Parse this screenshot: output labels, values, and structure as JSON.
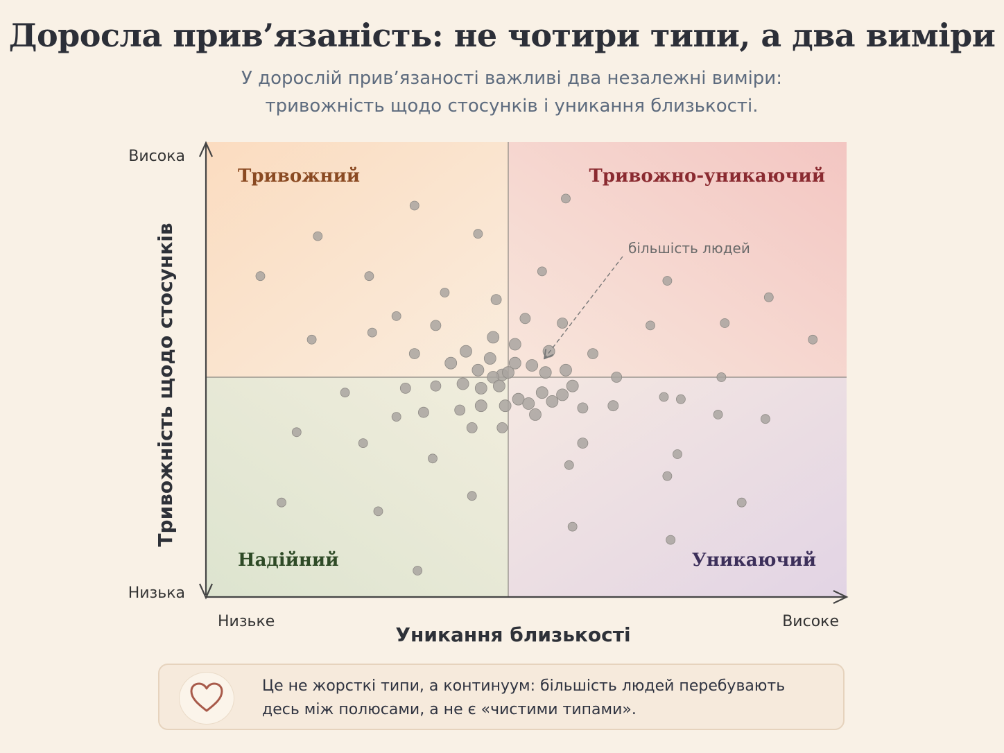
{
  "title": "Доросла прив’язаність: не чотири типи, а два виміри",
  "subtitle_line1": "У дорослій прив’язаності важливі два незалежні виміри:",
  "subtitle_line2": "тривожність щодо стосунків і уникання близькості.",
  "note": {
    "icon": "heart-icon",
    "line1": "Це не жорсткі типи, а континуум: більшість людей перебувають",
    "line2": "десь між полюсами, а не є «чистими типами»."
  },
  "colors": {
    "anxious": "#8a4a22",
    "fearful": "#8a2a30",
    "secure": "#2e4a26",
    "avoidant": "#3c2f5a",
    "points": "#a9a5a0"
  },
  "chart_data": {
    "type": "scatter",
    "xlabel": "Уникання близькості",
    "ylabel": "Тривожність щодо стосунків",
    "x_tick_labels": [
      "Низьке",
      "Високе"
    ],
    "y_tick_labels": [
      "Висока",
      "Низька"
    ],
    "xlim": [
      -1,
      1
    ],
    "ylim": [
      -1,
      1
    ],
    "quadrants": [
      {
        "id": "anxious",
        "label": "Тривожний",
        "position": "top-left"
      },
      {
        "id": "fearful",
        "label": "Тривожно-уникаючий",
        "position": "top-right"
      },
      {
        "id": "secure",
        "label": "Надійний",
        "position": "bottom-left"
      },
      {
        "id": "avoidant",
        "label": "Уникаючий",
        "position": "bottom-right"
      }
    ],
    "annotation": {
      "text": "більшість людей",
      "target": [
        0.12,
        0.05
      ]
    },
    "points": [
      [
        -0.31,
        0.73
      ],
      [
        0.17,
        0.76
      ],
      [
        -0.63,
        0.6
      ],
      [
        -0.1,
        0.61
      ],
      [
        -0.82,
        0.43
      ],
      [
        -0.46,
        0.43
      ],
      [
        0.1,
        0.45
      ],
      [
        0.47,
        0.41
      ],
      [
        0.77,
        0.34
      ],
      [
        -0.21,
        0.36
      ],
      [
        -0.04,
        0.33
      ],
      [
        -0.37,
        0.26
      ],
      [
        0.05,
        0.25
      ],
      [
        0.16,
        0.23
      ],
      [
        -0.24,
        0.22
      ],
      [
        0.42,
        0.22
      ],
      [
        0.64,
        0.23
      ],
      [
        -0.45,
        0.19
      ],
      [
        -0.65,
        0.16
      ],
      [
        0.9,
        0.16
      ],
      [
        -0.05,
        0.17
      ],
      [
        0.02,
        0.14
      ],
      [
        -0.31,
        0.1
      ],
      [
        0.12,
        0.11
      ],
      [
        0.25,
        0.1
      ],
      [
        -0.14,
        0.11
      ],
      [
        -0.19,
        0.06
      ],
      [
        -0.06,
        0.08
      ],
      [
        0.02,
        0.06
      ],
      [
        0.07,
        0.05
      ],
      [
        0.11,
        0.02
      ],
      [
        0.17,
        0.03
      ],
      [
        -0.1,
        0.03
      ],
      [
        -0.02,
        0.01
      ],
      [
        0.0,
        0.02
      ],
      [
        -0.05,
        0.0
      ],
      [
        0.63,
        0.0
      ],
      [
        0.32,
        0.0
      ],
      [
        -0.15,
        -0.03
      ],
      [
        -0.03,
        -0.04
      ],
      [
        -0.24,
        -0.04
      ],
      [
        0.19,
        -0.04
      ],
      [
        -0.09,
        -0.05
      ],
      [
        0.1,
        -0.07
      ],
      [
        -0.34,
        -0.05
      ],
      [
        -0.54,
        -0.07
      ],
      [
        0.16,
        -0.08
      ],
      [
        0.03,
        -0.1
      ],
      [
        0.46,
        -0.09
      ],
      [
        0.13,
        -0.11
      ],
      [
        0.06,
        -0.12
      ],
      [
        -0.01,
        -0.13
      ],
      [
        -0.09,
        -0.13
      ],
      [
        0.22,
        -0.14
      ],
      [
        -0.16,
        -0.15
      ],
      [
        0.51,
        -0.1
      ],
      [
        -0.28,
        -0.16
      ],
      [
        0.31,
        -0.13
      ],
      [
        -0.37,
        -0.18
      ],
      [
        0.62,
        -0.17
      ],
      [
        0.08,
        -0.17
      ],
      [
        -0.02,
        -0.23
      ],
      [
        -0.12,
        -0.23
      ],
      [
        0.76,
        -0.19
      ],
      [
        -0.7,
        -0.25
      ],
      [
        -0.48,
        -0.3
      ],
      [
        0.22,
        -0.3
      ],
      [
        0.5,
        -0.35
      ],
      [
        -0.25,
        -0.37
      ],
      [
        0.18,
        -0.4
      ],
      [
        0.47,
        -0.45
      ],
      [
        -0.12,
        -0.54
      ],
      [
        0.69,
        -0.57
      ],
      [
        -0.75,
        -0.57
      ],
      [
        -0.43,
        -0.61
      ],
      [
        0.19,
        -0.68
      ],
      [
        0.48,
        -0.74
      ],
      [
        -0.3,
        -0.88
      ]
    ]
  }
}
